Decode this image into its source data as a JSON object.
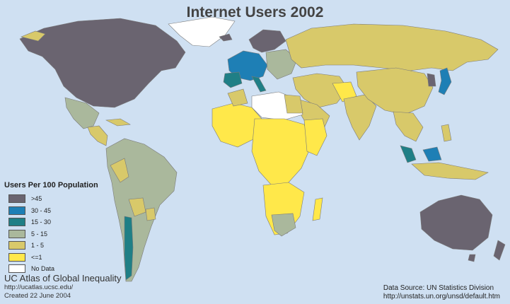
{
  "title": "Internet Users 2002",
  "legend": {
    "title": "Users Per 100 Population",
    "items": [
      {
        "label": ">45",
        "color": "#6a6470"
      },
      {
        "label": "30 - 45",
        "color": "#1e7fb5"
      },
      {
        "label": "15 - 30",
        "color": "#1f7f86"
      },
      {
        "label": "5 - 15",
        "color": "#aab89c"
      },
      {
        "label": "1 - 5",
        "color": "#d8c96a"
      },
      {
        "label": "<=1",
        "color": "#ffe84a"
      },
      {
        "label": "No Data",
        "color": "#ffffff"
      }
    ]
  },
  "credits": {
    "org": "UC Atlas of Global Inequality",
    "url": "http://ucatlas.ucsc.edu/",
    "created": "Created 22 June 2004",
    "source": "Data Source: UN Statistics Division",
    "source_url": "http://unstats.un.org/unsd/default.htm"
  },
  "colors": {
    "ocean": "#cfe0f2",
    "over45": "#6a6470",
    "c30_45": "#1e7fb5",
    "c15_30": "#1f7f86",
    "c5_15": "#aab89c",
    "c1_5": "#d8c96a",
    "le1": "#ffe84a",
    "nodata": "#ffffff"
  }
}
